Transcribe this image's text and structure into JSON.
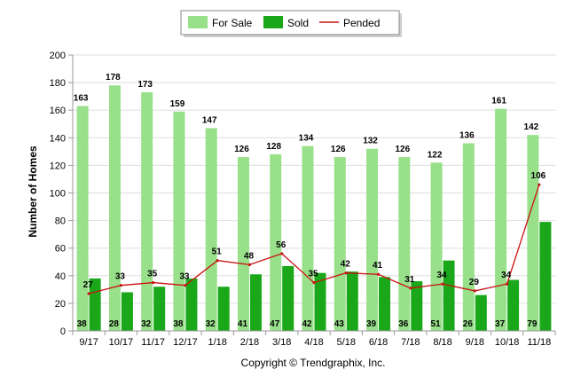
{
  "chart_data": {
    "type": "bar",
    "ylabel": "Number of Homes",
    "xlabel": "",
    "ylim": [
      0,
      200
    ],
    "yticks": [
      0,
      20,
      40,
      60,
      80,
      100,
      120,
      140,
      160,
      180,
      200
    ],
    "grid": true,
    "legend_position": "top-center",
    "categories": [
      "9/17",
      "10/17",
      "11/17",
      "12/17",
      "1/18",
      "2/18",
      "3/18",
      "4/18",
      "5/18",
      "6/18",
      "7/18",
      "8/18",
      "9/18",
      "10/18",
      "11/18"
    ],
    "series": [
      {
        "name": "For Sale",
        "type": "bar",
        "color": "#98e08a",
        "values": [
          163,
          178,
          173,
          159,
          147,
          126,
          128,
          134,
          126,
          132,
          126,
          122,
          136,
          161,
          142
        ]
      },
      {
        "name": "Sold",
        "type": "bar",
        "color": "#1aa81a",
        "values": [
          38,
          28,
          32,
          38,
          32,
          41,
          47,
          42,
          43,
          39,
          36,
          51,
          26,
          37,
          79
        ]
      },
      {
        "name": "Pended",
        "type": "line",
        "color": "#cc1111",
        "values": [
          27,
          33,
          35,
          33,
          51,
          48,
          56,
          35,
          42,
          41,
          31,
          34,
          29,
          34,
          106
        ]
      }
    ]
  },
  "caption": "Copyright © Trendgraphix, Inc."
}
